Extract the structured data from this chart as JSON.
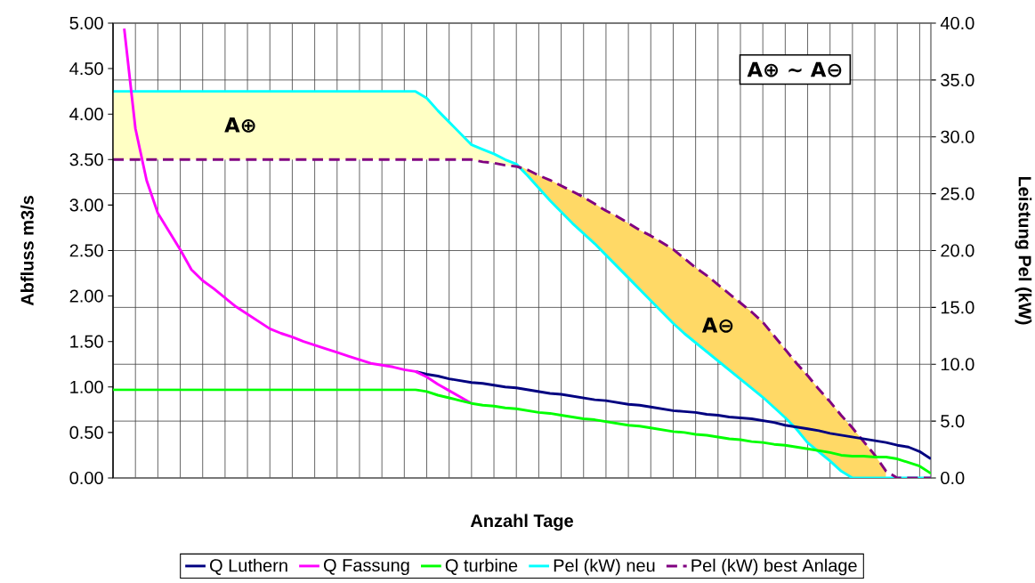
{
  "chart_data": {
    "type": "line",
    "xlabel": "Anzahl Tage",
    "ylabel": "Abfluss m3/s",
    "y2label": "Leistung Pel (kW)",
    "categories": [
      null,
      null,
      null,
      null,
      null,
      null,
      null,
      null,
      null,
      null,
      null,
      null,
      null,
      null,
      null,
      null,
      null,
      null,
      null,
      null,
      null,
      null,
      null,
      null,
      null,
      null,
      null,
      null,
      null,
      null,
      null,
      null,
      null,
      null,
      null,
      null,
      null,
      null,
      null,
      null,
      null,
      null,
      null,
      null,
      null,
      null,
      null,
      null,
      null,
      null,
      null,
      null,
      null,
      null,
      null,
      null,
      null,
      null,
      null,
      null,
      null,
      null,
      null,
      null,
      null,
      null,
      null,
      null,
      null,
      null,
      null,
      null,
      null,
      null
    ],
    "ylim": [
      0,
      5
    ],
    "yticks": [
      {
        "value": 0,
        "label": "0.00"
      },
      {
        "value": 0.5,
        "label": "0.50"
      },
      {
        "value": 1,
        "label": "1.00"
      },
      {
        "value": 1.5,
        "label": "1.50"
      },
      {
        "value": 2,
        "label": "2.00"
      },
      {
        "value": 2.5,
        "label": "2.50"
      },
      {
        "value": 3,
        "label": "3.00"
      },
      {
        "value": 3.5,
        "label": "3.50"
      },
      {
        "value": 4,
        "label": "4.00"
      },
      {
        "value": 4.5,
        "label": "4.50"
      },
      {
        "value": 5,
        "label": "5.00"
      }
    ],
    "y2lim": [
      0,
      40
    ],
    "y2ticks": [
      {
        "value": 0,
        "label": "0.0"
      },
      {
        "value": 5,
        "label": "5.0"
      },
      {
        "value": 10,
        "label": "10.0"
      },
      {
        "value": 15,
        "label": "15.0"
      },
      {
        "value": 20,
        "label": "20.0"
      },
      {
        "value": 25,
        "label": "25.0"
      },
      {
        "value": 30,
        "label": "30.0"
      },
      {
        "value": 35,
        "label": "35.0"
      },
      {
        "value": 40,
        "label": "40.0"
      }
    ],
    "grid": true,
    "legend": "bottom",
    "series": [
      {
        "name": "Q Luthern",
        "color": "#000080",
        "values": [
          null,
          null,
          null,
          null,
          null,
          null,
          null,
          null,
          null,
          null,
          null,
          null,
          null,
          null,
          null,
          null,
          null,
          null,
          null,
          null,
          null,
          null,
          null,
          null,
          null,
          null,
          null,
          1.17,
          1.14,
          1.12,
          1.09,
          1.07,
          1.05,
          1.04,
          1.02,
          1.0,
          0.99,
          0.97,
          0.95,
          0.93,
          0.92,
          0.9,
          0.88,
          0.86,
          0.85,
          0.83,
          0.81,
          0.8,
          0.78,
          0.76,
          0.74,
          0.73,
          0.72,
          0.7,
          0.69,
          0.67,
          0.66,
          0.65,
          0.63,
          0.61,
          0.58,
          0.56,
          0.54,
          0.52,
          0.49,
          0.47,
          0.45,
          0.43,
          0.41,
          0.39,
          0.36,
          0.34,
          0.29,
          0.21
        ]
      },
      {
        "name": "Q Fassung",
        "color": "#ff00ff",
        "values": [
          null,
          4.94,
          3.84,
          3.27,
          2.91,
          2.71,
          2.51,
          2.29,
          2.17,
          2.08,
          1.98,
          1.88,
          1.8,
          1.72,
          1.64,
          1.59,
          1.55,
          1.5,
          1.46,
          1.42,
          1.38,
          1.34,
          1.3,
          1.26,
          1.24,
          1.22,
          1.19,
          1.17,
          1.11,
          1.03,
          0.96,
          0.89,
          0.82,
          null,
          null,
          null,
          null,
          null,
          null,
          null,
          null,
          null,
          null,
          null,
          null,
          null,
          null,
          null,
          null,
          null,
          null,
          null,
          null,
          null,
          null,
          null,
          null,
          null,
          null,
          null,
          null,
          null,
          null,
          null,
          null,
          null,
          null,
          null,
          null,
          null,
          null,
          null,
          null,
          null
        ]
      },
      {
        "name": "Q turbine",
        "color": "#00ff00",
        "values": [
          0.97,
          0.97,
          0.97,
          0.97,
          0.97,
          0.97,
          0.97,
          0.97,
          0.97,
          0.97,
          0.97,
          0.97,
          0.97,
          0.97,
          0.97,
          0.97,
          0.97,
          0.97,
          0.97,
          0.97,
          0.97,
          0.97,
          0.97,
          0.97,
          0.97,
          0.97,
          0.97,
          0.97,
          0.95,
          0.91,
          0.88,
          0.85,
          0.82,
          0.8,
          0.79,
          0.77,
          0.76,
          0.74,
          0.72,
          0.71,
          0.69,
          0.67,
          0.65,
          0.64,
          0.62,
          0.6,
          0.58,
          0.57,
          0.55,
          0.53,
          0.51,
          0.5,
          0.48,
          0.47,
          0.45,
          0.43,
          0.42,
          0.4,
          0.39,
          0.37,
          0.36,
          0.34,
          0.32,
          0.3,
          0.28,
          0.25,
          0.24,
          0.24,
          0.23,
          0.23,
          0.21,
          0.17,
          0.13,
          0.05
        ]
      },
      {
        "name": "Pel (kW) neu",
        "color": "#00ffff",
        "axis": "y2",
        "values": [
          34.0,
          34.0,
          34.0,
          34.0,
          34.0,
          34.0,
          34.0,
          34.0,
          34.0,
          34.0,
          34.0,
          34.0,
          34.0,
          34.0,
          34.0,
          34.0,
          34.0,
          34.0,
          34.0,
          34.0,
          34.0,
          34.0,
          34.0,
          34.0,
          34.0,
          34.0,
          34.0,
          34.0,
          33.4,
          32.3,
          31.3,
          30.3,
          29.3,
          28.9,
          28.5,
          28.0,
          27.6,
          26.6,
          25.5,
          24.4,
          23.4,
          22.4,
          21.5,
          20.6,
          19.6,
          18.6,
          17.6,
          16.6,
          15.6,
          14.6,
          13.6,
          12.7,
          11.9,
          11.1,
          10.3,
          9.5,
          8.7,
          7.9,
          7.1,
          6.2,
          5.3,
          4.3,
          3.1,
          2.3,
          1.5,
          0.6,
          0,
          0,
          0,
          0,
          0,
          0,
          0,
          0
        ],
        "upper": [
          34.0,
          34.0,
          34.0,
          34.0,
          34.0,
          34.0,
          34.0,
          34.0,
          34.0,
          34.0,
          34.0,
          34.0,
          34.0,
          34.0,
          34.0,
          34.0,
          34.0,
          34.0,
          34.0,
          34.0,
          34.0,
          34.0,
          34.0,
          34.0,
          34.0,
          34.0,
          34.0,
          34.0,
          33.4,
          32.3,
          31.3,
          30.3,
          29.3,
          28.9,
          28.5,
          28.0,
          27.6,
          null,
          null,
          null,
          null,
          null,
          null,
          null,
          null,
          null,
          null,
          null,
          null,
          null,
          null,
          null,
          null,
          null,
          null,
          null,
          null,
          null,
          null,
          null,
          null,
          null,
          null,
          null,
          null,
          null,
          null,
          null,
          null,
          null,
          null,
          null,
          null,
          null
        ],
        "lower": [
          28.0,
          28.0,
          28.0,
          28.0,
          28.0,
          28.0,
          28.0,
          28.0,
          28.0,
          28.0,
          28.0,
          28.0,
          28.0,
          28.0,
          28.0,
          28.0,
          28.0,
          28.0,
          28.0,
          28.0,
          28.0,
          28.0,
          28.0,
          28.0,
          28.0,
          28.0,
          28.0,
          28.0,
          28.0,
          28.0,
          28.0,
          28.0,
          28.0,
          27.8,
          27.7,
          27.5,
          27.4,
          null,
          null,
          null,
          null,
          null,
          null,
          null,
          null,
          null,
          null,
          null,
          null,
          null,
          null,
          null,
          null,
          null,
          null,
          null,
          null,
          null,
          null,
          null,
          null,
          null,
          null,
          null,
          null,
          null,
          null,
          null,
          null,
          null,
          null,
          null,
          null,
          null
        ]
      },
      {
        "name": "Pel (kW) best Anlage",
        "color": "#800080",
        "axis": "y2",
        "line_style": "dashed",
        "values": [
          28.0,
          28.0,
          28.0,
          28.0,
          28.0,
          28.0,
          28.0,
          28.0,
          28.0,
          28.0,
          28.0,
          28.0,
          28.0,
          28.0,
          28.0,
          28.0,
          28.0,
          28.0,
          28.0,
          28.0,
          28.0,
          28.0,
          28.0,
          28.0,
          28.0,
          28.0,
          28.0,
          28.0,
          28.0,
          28.0,
          28.0,
          28.0,
          28.0,
          27.8,
          27.7,
          27.5,
          27.4,
          27.1,
          26.6,
          26.2,
          25.7,
          25.2,
          24.7,
          24.1,
          23.5,
          23.0,
          22.4,
          21.8,
          21.3,
          20.7,
          20.1,
          19.3,
          18.5,
          17.8,
          17.0,
          16.2,
          15.4,
          14.6,
          13.7,
          12.5,
          11.3,
          10.1,
          9.0,
          7.8,
          6.7,
          5.5,
          4.4,
          3.2,
          2.0,
          0.6,
          0,
          0,
          0,
          0
        ],
        "upper": [
          null,
          null,
          null,
          null,
          null,
          null,
          null,
          null,
          null,
          null,
          null,
          null,
          null,
          null,
          null,
          null,
          null,
          null,
          null,
          null,
          null,
          null,
          null,
          null,
          null,
          null,
          null,
          null,
          null,
          null,
          null,
          null,
          null,
          null,
          null,
          null,
          27.6,
          27.1,
          26.6,
          26.2,
          25.7,
          25.2,
          24.7,
          24.1,
          23.5,
          23.0,
          22.4,
          21.8,
          21.3,
          20.7,
          20.1,
          19.3,
          18.5,
          17.8,
          17.0,
          16.2,
          15.4,
          14.6,
          13.7,
          12.5,
          11.3,
          10.1,
          9.0,
          7.8,
          6.7,
          5.5,
          4.4,
          3.2,
          2.0,
          0.6,
          null,
          null,
          null,
          null
        ],
        "lower": [
          null,
          null,
          null,
          null,
          null,
          null,
          null,
          null,
          null,
          null,
          null,
          null,
          null,
          null,
          null,
          null,
          null,
          null,
          null,
          null,
          null,
          null,
          null,
          null,
          null,
          null,
          null,
          null,
          null,
          null,
          null,
          null,
          null,
          null,
          null,
          null,
          27.4,
          26.6,
          25.5,
          24.4,
          23.4,
          22.4,
          21.5,
          20.6,
          19.6,
          18.6,
          17.6,
          16.6,
          15.6,
          14.6,
          13.6,
          12.7,
          11.9,
          11.1,
          10.3,
          9.5,
          8.7,
          7.9,
          7.1,
          6.2,
          5.3,
          4.3,
          3.1,
          2.3,
          1.5,
          0.6,
          0,
          0,
          0,
          0,
          null,
          null,
          null,
          null
        ]
      }
    ],
    "annotations": [
      "A⊕",
      "A⊖",
      "A⊕ ~ A⊖"
    ]
  }
}
